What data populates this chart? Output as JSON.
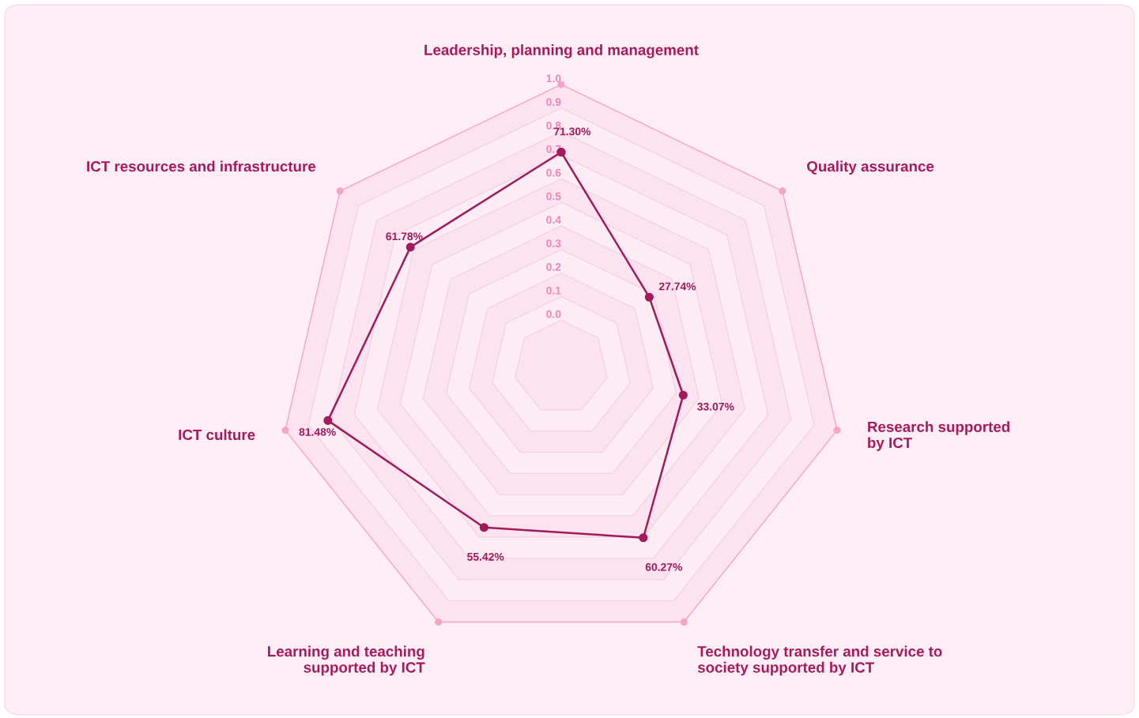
{
  "chart_data": {
    "type": "radar",
    "categories": [
      "Leadership, planning and management",
      "Quality assurance",
      "Research supported\nby ICT",
      "Technology transfer and service to\nsociety supported by ICT",
      "Learning and teaching\nsupported by ICT",
      "ICT culture",
      "ICT resources and infrastructure"
    ],
    "series": [
      {
        "color": "#a11a5c",
        "values": [
          0.713,
          0.2774,
          0.3307,
          0.6027,
          0.5542,
          0.8148,
          0.6178
        ],
        "value_labels": [
          "71.30%",
          "27.74%",
          "33.07%",
          "60.27%",
          "55.42%",
          "81.48%",
          "61.78%"
        ]
      }
    ],
    "ylim": [
      -0.2,
      1
    ],
    "yticks": [
      {
        "value": 0,
        "label": "0.0"
      },
      0.1,
      0.2,
      0.3,
      0.4,
      0.5,
      0.6,
      0.7,
      0.8,
      0.9,
      {
        "value": 1,
        "label": "1.0"
      }
    ],
    "grid": true,
    "marker": "circle",
    "line_style": "solid"
  }
}
